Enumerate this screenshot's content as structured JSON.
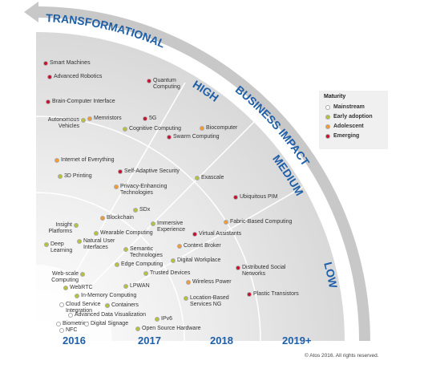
{
  "header": {
    "arc_labels": [
      "TRANSFORMATIONAL",
      "BUSINESS IMPACT"
    ],
    "ring_labels": [
      "HIGH",
      "MEDIUM",
      "LOW"
    ],
    "years": [
      "2016",
      "2017",
      "2018",
      "2019+"
    ]
  },
  "legend": {
    "title": "Maturity",
    "entries": [
      {
        "label": "Mainstream",
        "color": "#ffffff"
      },
      {
        "label": "Early adoption",
        "color": "#b5c334"
      },
      {
        "label": "Adolescent",
        "color": "#f39b2f"
      },
      {
        "label": "Emerging",
        "color": "#c8102e"
      }
    ]
  },
  "items": [
    {
      "label": "Smart Machines",
      "maturity": "Emerging"
    },
    {
      "label": "Advanced Robotics",
      "maturity": "Emerging"
    },
    {
      "label": "Quantum Computing",
      "maturity": "Emerging"
    },
    {
      "label": "Brain-Computer Interface",
      "maturity": "Emerging"
    },
    {
      "label": "Autonomous Vehicles",
      "maturity": "Early adoption"
    },
    {
      "label": "Memristors",
      "maturity": "Adolescent"
    },
    {
      "label": "5G",
      "maturity": "Emerging"
    },
    {
      "label": "Cognitive Computing",
      "maturity": "Early adoption"
    },
    {
      "label": "Biocomputer",
      "maturity": "Adolescent"
    },
    {
      "label": "Swarm Computing",
      "maturity": "Emerging"
    },
    {
      "label": "Internet of Everything",
      "maturity": "Adolescent"
    },
    {
      "label": "3D Printing",
      "maturity": "Early adoption"
    },
    {
      "label": "Self-Adaptive Security",
      "maturity": "Emerging"
    },
    {
      "label": "Exascale",
      "maturity": "Early adoption"
    },
    {
      "label": "Privacy-Enhancing Technologies",
      "maturity": "Adolescent"
    },
    {
      "label": "Ubiquitous PIM",
      "maturity": "Emerging"
    },
    {
      "label": "SDx",
      "maturity": "Early adoption"
    },
    {
      "label": "Blockchain",
      "maturity": "Adolescent"
    },
    {
      "label": "Immersive Experience",
      "maturity": "Early adoption"
    },
    {
      "label": "Fabric-Based Computing",
      "maturity": "Adolescent"
    },
    {
      "label": "Insight Platforms",
      "maturity": "Early adoption"
    },
    {
      "label": "Wearable Computing",
      "maturity": "Early adoption"
    },
    {
      "label": "Virtual Assistants",
      "maturity": "Emerging"
    },
    {
      "label": "Deep Learning",
      "maturity": "Early adoption"
    },
    {
      "label": "Natural User Interfaces",
      "maturity": "Early adoption"
    },
    {
      "label": "Semantic Technologies",
      "maturity": "Early adoption"
    },
    {
      "label": "Context Broker",
      "maturity": "Adolescent"
    },
    {
      "label": "Digital Workplace",
      "maturity": "Early adoption"
    },
    {
      "label": "Edge Computing",
      "maturity": "Early adoption"
    },
    {
      "label": "Distributed Social Networks",
      "maturity": "Emerging"
    },
    {
      "label": "Trusted Devices",
      "maturity": "Early adoption"
    },
    {
      "label": "Web-scale Computing",
      "maturity": "Early adoption"
    },
    {
      "label": "WebRTC",
      "maturity": "Early adoption"
    },
    {
      "label": "LPWAN",
      "maturity": "Early adoption"
    },
    {
      "label": "Wireless Power",
      "maturity": "Adolescent"
    },
    {
      "label": "In-Memory Computing",
      "maturity": "Early adoption"
    },
    {
      "label": "Location-Based Services NG",
      "maturity": "Early adoption"
    },
    {
      "label": "Plastic Transistors",
      "maturity": "Emerging"
    },
    {
      "label": "Cloud Service Integration",
      "maturity": "Mainstream"
    },
    {
      "label": "Containers",
      "maturity": "Early adoption"
    },
    {
      "label": "Advanced Data Visualization",
      "maturity": "Mainstream"
    },
    {
      "label": "IPv6",
      "maturity": "Early adoption"
    },
    {
      "label": "Biometrics",
      "maturity": "Mainstream"
    },
    {
      "label": "Digital Signage",
      "maturity": "Mainstream"
    },
    {
      "label": "NFC",
      "maturity": "Mainstream"
    },
    {
      "label": "Open Source Hardware",
      "maturity": "Early adoption"
    }
  ],
  "footer": {
    "copyright": "© Atos 2016. All rights reserved."
  }
}
